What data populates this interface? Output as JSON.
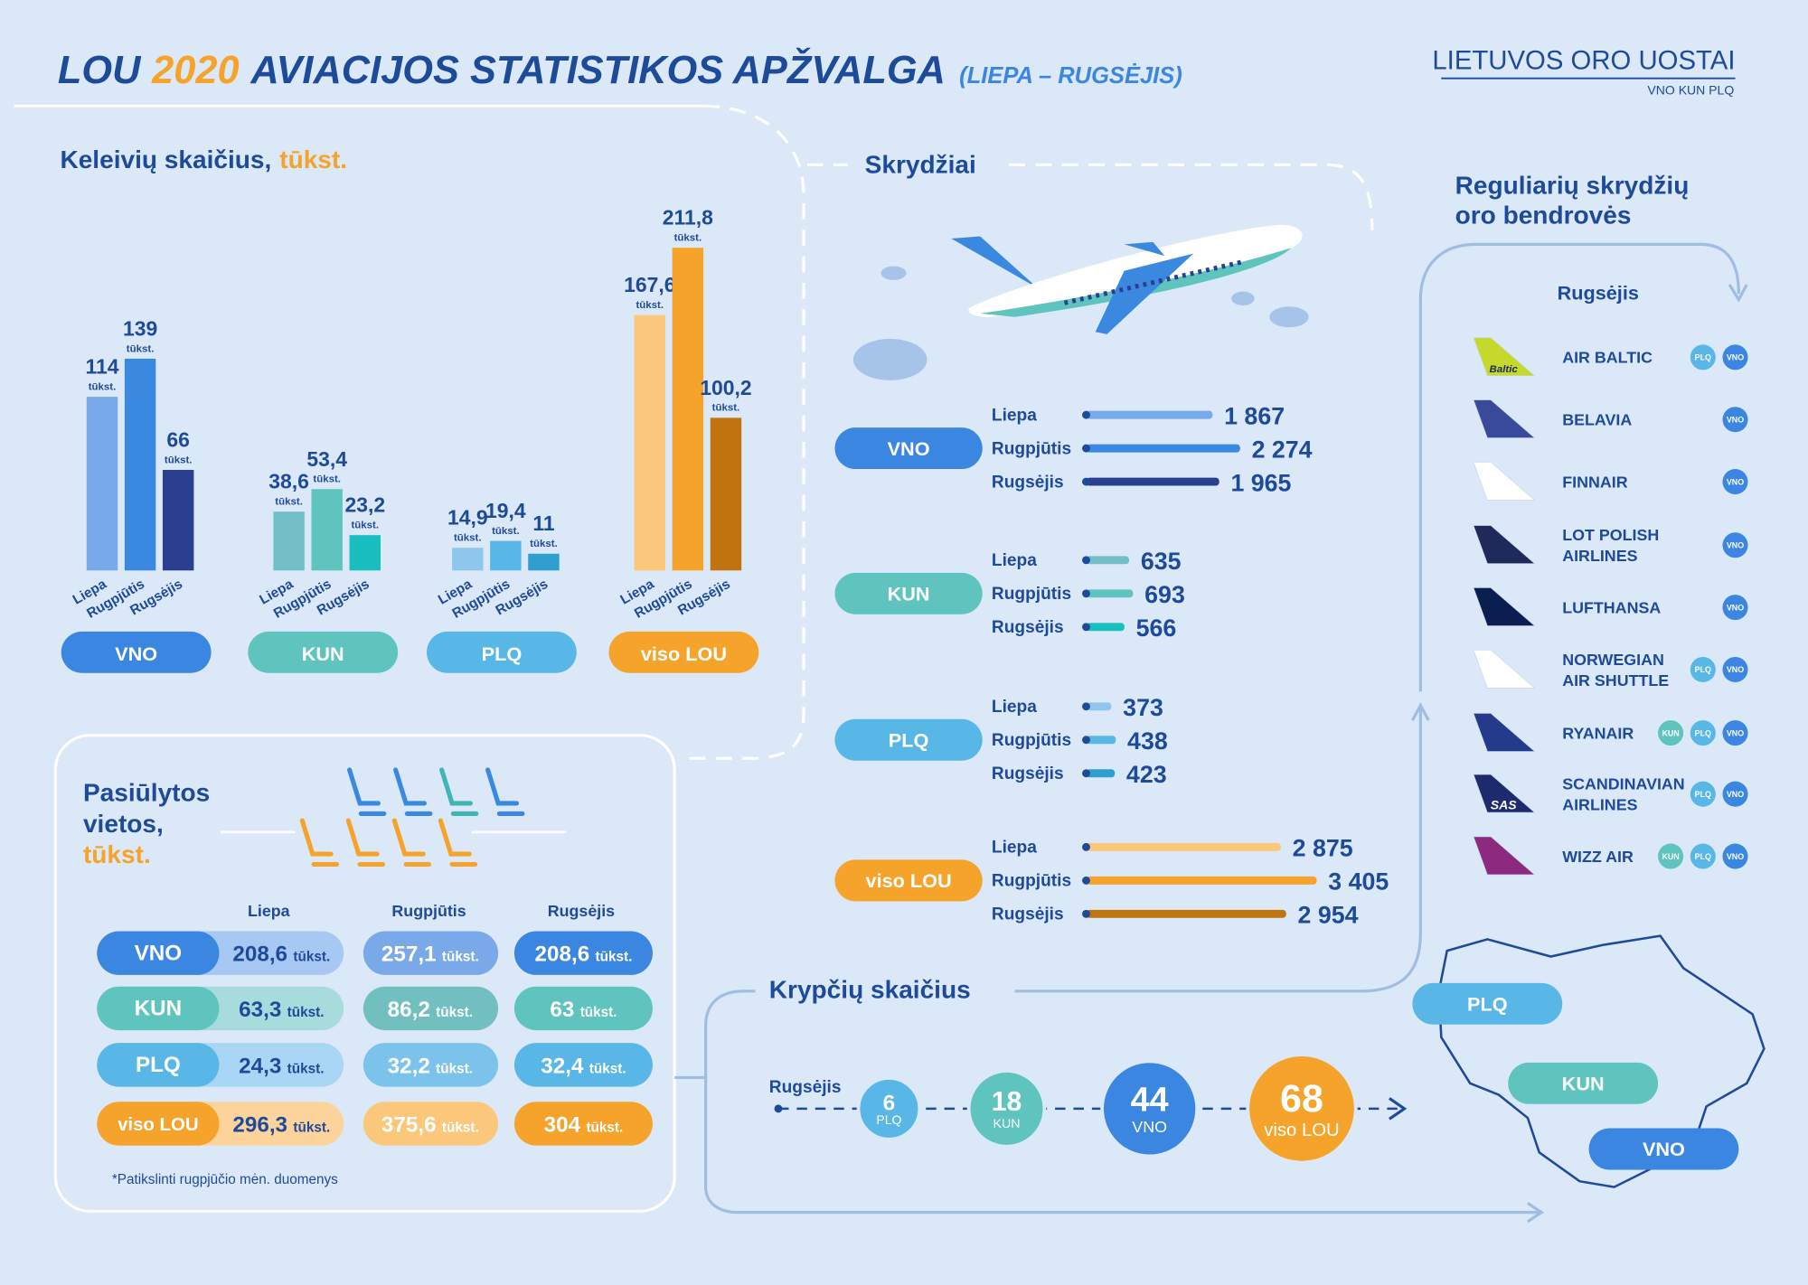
{
  "header": {
    "title_parts": [
      "LOU",
      "2020",
      "AVIACIJOS STATISTIKOS APŽVALGA",
      "(LIEPA – RUGSĖJIS)"
    ],
    "logo": "LIETUVOS ORO UOSTAI",
    "logo_sub": "VNO KUN PLQ"
  },
  "chart_data": [
    {
      "type": "grouped-bar",
      "title": "Keleivių skaičius,",
      "title_unit": "tūkst.",
      "unit": "tūkst.",
      "categories": [
        "Liepa",
        "Rugpjūtis",
        "Rugsėjis"
      ],
      "groups": [
        {
          "name": "VNO",
          "color": "#3a86e0",
          "colors": [
            "#78a9e8",
            "#3a88e0",
            "#2a3f8f"
          ],
          "values": [
            114,
            139,
            66
          ]
        },
        {
          "name": "KUN",
          "color": "#5ec4bd",
          "colors": [
            "#72bfc8",
            "#5ec4bd",
            "#19bfbf"
          ],
          "values": [
            38.6,
            53.4,
            23.2
          ],
          "value_labels": [
            "38,6",
            "53,4",
            "23,2"
          ]
        },
        {
          "name": "PLQ",
          "color": "#58b7e6",
          "colors": [
            "#8fc7ec",
            "#58b7e6",
            "#2f9fcf"
          ],
          "values": [
            14.9,
            19.4,
            11
          ],
          "value_labels": [
            "14,9",
            "19,4",
            "11"
          ]
        },
        {
          "name": "viso LOU",
          "color": "#f5a32a",
          "colors": [
            "#fbc77a",
            "#f5a32a",
            "#c0730e"
          ],
          "values": [
            167.6,
            211.8,
            100.2
          ],
          "value_labels": [
            "167,6",
            "211,8",
            "100,2"
          ]
        }
      ]
    },
    {
      "type": "hbar",
      "title": "Skrydžiai",
      "categories": [
        "Liepa",
        "Rugpjūtis",
        "Rugsėjis"
      ],
      "groups": [
        {
          "name": "VNO",
          "color": "#3a86e0",
          "colors": [
            "#78a9e8",
            "#3a88e0",
            "#2a3f8f"
          ],
          "values": [
            1867,
            2274,
            1965
          ],
          "value_labels": [
            "1 867",
            "2 274",
            "1 965"
          ]
        },
        {
          "name": "KUN",
          "color": "#5ec4bd",
          "colors": [
            "#72bfc8",
            "#5ec4bd",
            "#19bfbf"
          ],
          "values": [
            635,
            693,
            566
          ]
        },
        {
          "name": "PLQ",
          "color": "#58b7e6",
          "colors": [
            "#8fc7ec",
            "#58b7e6",
            "#2f9fcf"
          ],
          "values": [
            373,
            438,
            423
          ]
        },
        {
          "name": "viso LOU",
          "color": "#f5a32a",
          "colors": [
            "#fbc77a",
            "#f5a32a",
            "#c0730e"
          ],
          "values": [
            2875,
            3405,
            2954
          ],
          "value_labels": [
            "2 875",
            "3 405",
            "2 954"
          ]
        }
      ]
    },
    {
      "type": "bubble",
      "title": "Krypčių skaičius",
      "subtitle": "Rugsėjis",
      "categories": [
        "PLQ",
        "KUN",
        "VNO",
        "viso LOU"
      ],
      "values": [
        6,
        18,
        44,
        68
      ],
      "colors": [
        "#58b7e6",
        "#5ec4bd",
        "#3a86e0",
        "#f5a32a"
      ]
    }
  ],
  "seats": {
    "title": [
      "Pasiūlytos",
      "vietos,"
    ],
    "title_unit": "tūkst.",
    "unit": "tūkst.",
    "columns": [
      "Liepa",
      "Rugpjūtis",
      "Rugsėjis"
    ],
    "rows": [
      {
        "name": "VNO",
        "colors": [
          "#3a86e0",
          "#a6c8f2",
          "#7aa9ea",
          "#3a86e0"
        ],
        "cells": [
          "208,6",
          "257,1",
          "208,6"
        ]
      },
      {
        "name": "KUN",
        "colors": [
          "#5ec4bd",
          "#a7dbdc",
          "#72bfc0",
          "#5ec4bd"
        ],
        "cells": [
          "63,3",
          "86,2",
          "63"
        ]
      },
      {
        "name": "PLQ",
        "colors": [
          "#58b7e6",
          "#a9d6f4",
          "#7cc3ec",
          "#58b7e6"
        ],
        "cells": [
          "24,3",
          "32,2",
          "32,4"
        ]
      },
      {
        "name": "viso LOU",
        "colors": [
          "#f5a32a",
          "#fcd39a",
          "#fbc77a",
          "#f5a32a"
        ],
        "cells": [
          "296,3",
          "375,6",
          "304"
        ]
      }
    ],
    "note": "*Patikslinti rugpjūčio mėn. duomenys"
  },
  "map": {
    "labels": [
      "PLQ",
      "KUN",
      "VNO"
    ]
  },
  "airlines": {
    "title": [
      "Reguliarių skrydžių",
      "oro bendrovės"
    ],
    "subtitle": "Rugsėjis",
    "items": [
      {
        "name": [
          "AIR BALTIC"
        ],
        "airports": [
          "PLQ",
          "VNO"
        ],
        "color": "#c5d92d",
        "logo_text": "Baltic"
      },
      {
        "name": [
          "BELAVIA"
        ],
        "airports": [
          "VNO"
        ],
        "color": "#3a4a9a"
      },
      {
        "name": [
          "FINNAIR"
        ],
        "airports": [
          "VNO"
        ],
        "color": "#ffffff"
      },
      {
        "name": [
          "LOT POLISH",
          "AIRLINES"
        ],
        "airports": [
          "VNO"
        ],
        "color": "#1e2a5a"
      },
      {
        "name": [
          "LUFTHANSA"
        ],
        "airports": [
          "VNO"
        ],
        "color": "#0a1f4f"
      },
      {
        "name": [
          "NORWEGIAN",
          "AIR SHUTTLE"
        ],
        "airports": [
          "PLQ",
          "VNO"
        ],
        "color": "#ffffff"
      },
      {
        "name": [
          "RYANAIR"
        ],
        "airports": [
          "KUN",
          "PLQ",
          "VNO"
        ],
        "color": "#243a8a"
      },
      {
        "name": [
          "SCANDINAVIAN",
          "AIRLINES"
        ],
        "airports": [
          "PLQ",
          "VNO"
        ],
        "color": "#1e2a6e",
        "logo_text": "SAS"
      },
      {
        "name": [
          "WIZZ AIR"
        ],
        "airports": [
          "KUN",
          "PLQ",
          "VNO"
        ],
        "color": "#8b2a7e"
      }
    ]
  }
}
